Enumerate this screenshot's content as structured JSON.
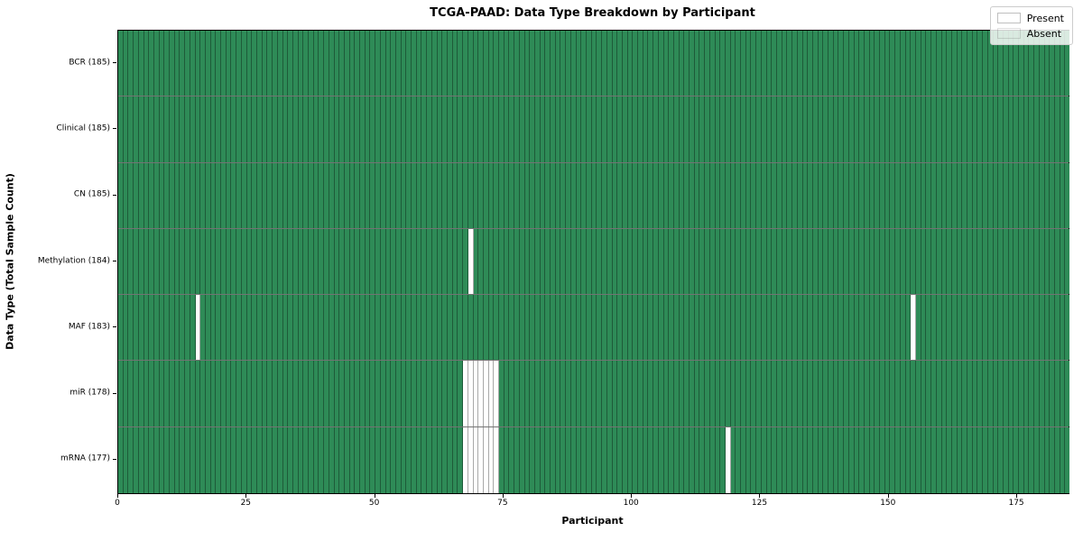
{
  "chart_data": {
    "type": "heatmap",
    "title": "TCGA-PAAD: Data Type Breakdown by Participant",
    "xlabel": "Participant",
    "ylabel": "Data Type (Total Sample Count)",
    "n_participants": 185,
    "x_ticks": [
      0,
      25,
      50,
      75,
      100,
      125,
      150,
      175
    ],
    "x_range": [
      0,
      185
    ],
    "grid": "cell-edges",
    "rows": [
      {
        "label": "BCR (185)",
        "data_type": "BCR",
        "total": 185,
        "absent_participants": []
      },
      {
        "label": "Clinical (185)",
        "data_type": "Clinical",
        "total": 185,
        "absent_participants": []
      },
      {
        "label": "CN (185)",
        "data_type": "CN",
        "total": 185,
        "absent_participants": []
      },
      {
        "label": "Methylation (184)",
        "data_type": "Methylation",
        "total": 184,
        "absent_participants": [
          68
        ]
      },
      {
        "label": "MAF (183)",
        "data_type": "MAF",
        "total": 183,
        "absent_participants": [
          15,
          154
        ]
      },
      {
        "label": "miR (178)",
        "data_type": "miR",
        "total": 178,
        "absent_participants": [
          67,
          68,
          69,
          70,
          71,
          72,
          73
        ]
      },
      {
        "label": "mRNA (177)",
        "data_type": "mRNA",
        "total": 177,
        "absent_participants": [
          67,
          68,
          69,
          70,
          71,
          72,
          73,
          118
        ]
      }
    ],
    "legend": {
      "position": "upper right",
      "entries": [
        {
          "label": "Present",
          "color": "#2e8b57"
        },
        {
          "label": "Absent",
          "color": "#ffffff"
        }
      ]
    },
    "colors": {
      "present": "#2e8b57",
      "absent": "#ffffff",
      "cell_edge": "rgba(0,0,0,0.34)",
      "row_edge": "rgba(0,0,0,0.55)",
      "plot_border": "#000000"
    }
  }
}
